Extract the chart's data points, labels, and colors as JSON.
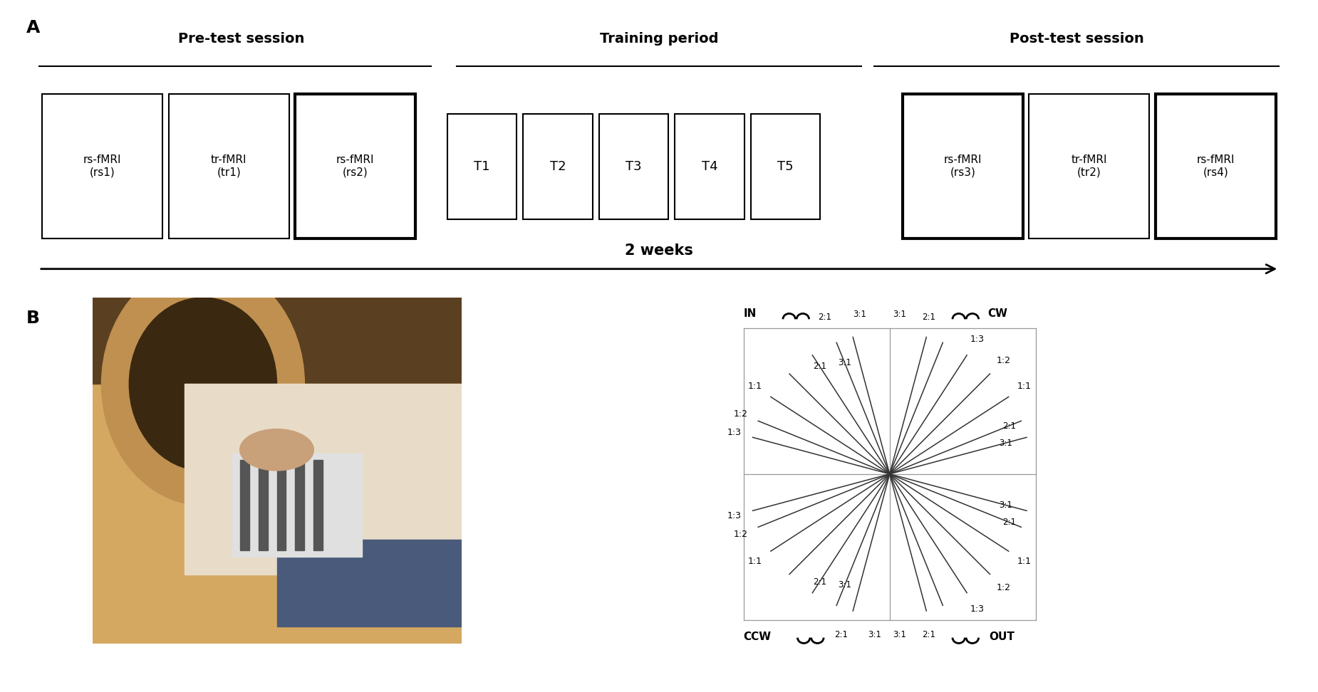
{
  "panel_A_label": "A",
  "panel_B_label": "B",
  "pretest_label": "Pre-test session",
  "training_label": "Training period",
  "posttest_label": "Post-test session",
  "two_weeks_label": "2 weeks",
  "pre_boxes": [
    {
      "label": "rs-fMRI\n(rs1)",
      "bold": false
    },
    {
      "label": "tr-fMRI\n(tr1)",
      "bold": false
    },
    {
      "label": "rs-fMRI\n(rs2)",
      "bold": true
    }
  ],
  "train_boxes": [
    "T1",
    "T2",
    "T3",
    "T4",
    "T5"
  ],
  "post_boxes": [
    {
      "label": "rs-fMRI\n(rs3)",
      "bold": true
    },
    {
      "label": "tr-fMRI\n(tr2)",
      "bold": false
    },
    {
      "label": "rs-fMRI\n(rs4)",
      "bold": true
    }
  ],
  "tl_angles": [
    105,
    112,
    123,
    135,
    147,
    158,
    165
  ],
  "tr_angles": [
    15,
    22,
    33,
    45,
    57,
    68,
    75
  ],
  "br_angles": [
    -15,
    -22,
    -33,
    -45,
    -57,
    -68,
    -75
  ],
  "bl_angles": [
    -105,
    -112,
    -123,
    -135,
    -147,
    -158,
    -165
  ],
  "spoke_color": "#333333",
  "label_color": "#000000",
  "grid_color": "#999999",
  "corner_color": "#000000",
  "bg_color": "#ffffff"
}
